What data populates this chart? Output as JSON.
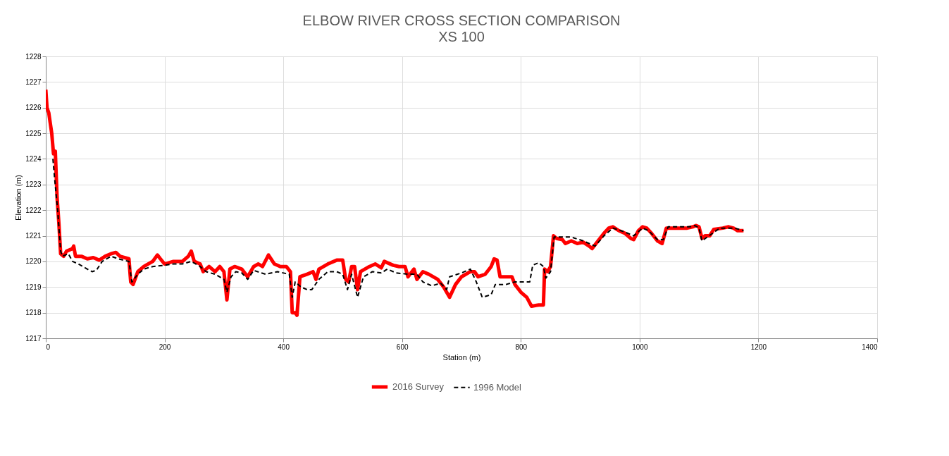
{
  "chart_data": {
    "type": "line",
    "title": "ELBOW RIVER CROSS SECTION COMPARISON",
    "subtitle": "XS 100",
    "xlabel": "Station (m)",
    "ylabel": "Elevation (m)",
    "xlim": [
      0,
      1400
    ],
    "xticks": [
      0,
      200,
      400,
      600,
      800,
      {
        "value": 1000,
        "label": "1000"
      },
      {
        "value": 1200,
        "label": "1200"
      },
      {
        "value": 1400,
        "label": "1400"
      }
    ],
    "ylim": [
      1217,
      1228
    ],
    "yticks": [
      1217,
      1218,
      1219,
      1220,
      1221,
      1222,
      1223,
      1224,
      1225,
      1226,
      1227,
      1228
    ],
    "grid": true,
    "legend": "bottom",
    "series": [
      {
        "name": "2016 Survey",
        "color": "#ff0000",
        "line_style": "solid",
        "x": [
          0,
          2,
          5,
          10,
          13,
          16,
          19,
          22,
          25,
          30,
          35,
          45,
          47,
          50,
          60,
          70,
          80,
          90,
          100,
          110,
          118,
          125,
          140,
          143,
          147,
          155,
          165,
          180,
          188,
          193,
          200,
          215,
          230,
          240,
          245,
          250,
          260,
          265,
          275,
          285,
          293,
          300,
          305,
          310,
          318,
          330,
          340,
          350,
          358,
          365,
          375,
          385,
          395,
          405,
          412,
          415,
          420,
          423,
          428,
          440,
          450,
          455,
          460,
          475,
          490,
          500,
          505,
          510,
          515,
          520,
          525,
          530,
          545,
          555,
          565,
          570,
          585,
          595,
          605,
          610,
          620,
          625,
          635,
          645,
          660,
          670,
          675,
          680,
          690,
          700,
          715,
          722,
          728,
          740,
          750,
          755,
          760,
          765,
          775,
          785,
          790,
          800,
          810,
          818,
          830,
          838,
          840,
          845,
          850,
          855,
          860,
          870,
          875,
          885,
          895,
          905,
          915,
          920,
          930,
          940,
          948,
          955,
          965,
          975,
          985,
          990,
          998,
          1005,
          1012,
          1020,
          1030,
          1038,
          1045,
          1055,
          1070,
          1080,
          1090,
          1095,
          1100,
          1105,
          1110,
          1118,
          1125,
          1140,
          1150,
          1158,
          1165,
          1175
        ],
        "values": [
          1226.7,
          1226.0,
          1225.8,
          1225.0,
          1224.2,
          1224.3,
          1222.5,
          1221.5,
          1220.3,
          1220.2,
          1220.4,
          1220.5,
          1220.6,
          1220.2,
          1220.2,
          1220.1,
          1220.15,
          1220.05,
          1220.2,
          1220.3,
          1220.35,
          1220.2,
          1220.1,
          1219.2,
          1219.1,
          1219.6,
          1219.8,
          1220.0,
          1220.25,
          1220.1,
          1219.9,
          1220.0,
          1220.0,
          1220.2,
          1220.4,
          1220.0,
          1219.9,
          1219.6,
          1219.8,
          1219.6,
          1219.8,
          1219.6,
          1218.5,
          1219.7,
          1219.8,
          1219.7,
          1219.4,
          1219.8,
          1219.9,
          1219.8,
          1220.25,
          1219.9,
          1219.8,
          1219.8,
          1219.6,
          1218.0,
          1218.0,
          1217.9,
          1219.4,
          1219.5,
          1219.6,
          1219.3,
          1219.7,
          1219.9,
          1220.05,
          1220.05,
          1219.3,
          1219.2,
          1219.8,
          1219.8,
          1218.9,
          1219.6,
          1219.8,
          1219.9,
          1219.75,
          1220.0,
          1219.85,
          1219.8,
          1219.8,
          1219.4,
          1219.7,
          1219.3,
          1219.6,
          1219.5,
          1219.3,
          1219.0,
          1218.8,
          1218.6,
          1219.1,
          1219.4,
          1219.6,
          1219.6,
          1219.4,
          1219.5,
          1219.8,
          1220.1,
          1220.05,
          1219.4,
          1219.4,
          1219.4,
          1219.1,
          1218.8,
          1218.6,
          1218.25,
          1218.3,
          1218.3,
          1219.7,
          1219.6,
          1219.8,
          1221.0,
          1220.9,
          1220.85,
          1220.7,
          1220.8,
          1220.7,
          1220.75,
          1220.6,
          1220.5,
          1220.8,
          1221.1,
          1221.3,
          1221.35,
          1221.2,
          1221.1,
          1220.9,
          1220.85,
          1221.2,
          1221.35,
          1221.3,
          1221.1,
          1220.8,
          1220.7,
          1221.3,
          1221.3,
          1221.3,
          1221.3,
          1221.35,
          1221.4,
          1221.35,
          1220.9,
          1221.0,
          1221.0,
          1221.25,
          1221.3,
          1221.35,
          1221.3,
          1221.2,
          1221.2
        ]
      },
      {
        "name": "1996 Model",
        "color": "#000000",
        "line_style": "dashed",
        "x": [
          12,
          15,
          20,
          25,
          28,
          38,
          45,
          55,
          70,
          78,
          85,
          95,
          110,
          122,
          140,
          145,
          155,
          165,
          180,
          200,
          215,
          230,
          245,
          260,
          270,
          285,
          300,
          305,
          312,
          320,
          330,
          340,
          350,
          370,
          390,
          410,
          415,
          420,
          430,
          440,
          448,
          460,
          475,
          490,
          500,
          508,
          515,
          525,
          535,
          550,
          565,
          575,
          590,
          610,
          625,
          635,
          650,
          665,
          675,
          680,
          700,
          715,
          725,
          735,
          750,
          757,
          775,
          790,
          805,
          815,
          820,
          830,
          838,
          842,
          850,
          856,
          870,
          885,
          905,
          925,
          940,
          955,
          975,
          990,
          1005,
          1015,
          1030,
          1040,
          1048,
          1065,
          1085,
          1093,
          1100,
          1105,
          1120,
          1135,
          1150,
          1160,
          1175
        ],
        "values": [
          1224.0,
          1223.2,
          1222.0,
          1220.4,
          1220.2,
          1220.3,
          1220.0,
          1219.9,
          1219.7,
          1219.6,
          1219.65,
          1220.0,
          1220.2,
          1220.1,
          1220.0,
          1219.2,
          1219.5,
          1219.7,
          1219.8,
          1219.85,
          1219.9,
          1219.9,
          1220.0,
          1219.8,
          1219.6,
          1219.5,
          1219.3,
          1218.8,
          1219.4,
          1219.6,
          1219.55,
          1219.3,
          1219.65,
          1219.5,
          1219.6,
          1219.5,
          1218.6,
          1219.2,
          1219.0,
          1218.9,
          1218.9,
          1219.3,
          1219.6,
          1219.6,
          1219.5,
          1218.9,
          1219.5,
          1218.6,
          1219.4,
          1219.6,
          1219.55,
          1219.7,
          1219.55,
          1219.5,
          1219.5,
          1219.2,
          1219.05,
          1219.15,
          1218.9,
          1219.4,
          1219.55,
          1219.7,
          1219.2,
          1218.6,
          1218.7,
          1219.1,
          1219.1,
          1219.2,
          1219.2,
          1219.2,
          1219.85,
          1219.95,
          1219.8,
          1219.35,
          1219.6,
          1220.95,
          1220.95,
          1220.95,
          1220.8,
          1220.6,
          1221.0,
          1221.3,
          1221.15,
          1221.0,
          1221.3,
          1221.2,
          1220.85,
          1220.85,
          1221.35,
          1221.35,
          1221.35,
          1221.4,
          1221.3,
          1220.8,
          1221.05,
          1221.3,
          1221.3,
          1221.3,
          1221.2
        ]
      }
    ]
  }
}
